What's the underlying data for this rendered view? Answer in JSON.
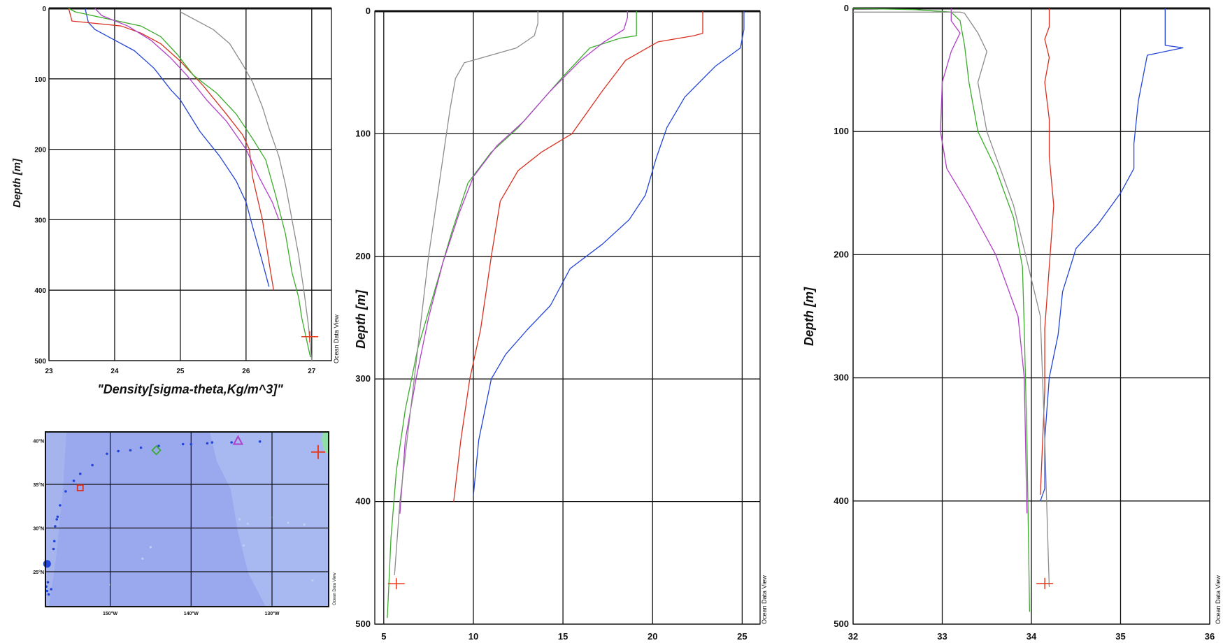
{
  "credit": "Ocean Data View",
  "colors": {
    "blue": "#2244d8",
    "red": "#d83020",
    "green": "#3cab2c",
    "purple": "#b040c8",
    "gray": "#8c8c8c",
    "marker": "#e83a1e",
    "map_ocean": "#9aa8ee",
    "map_light": "#b4d4f2",
    "map_land": "#8ee0a6"
  },
  "chart_data": [
    {
      "id": "density",
      "type": "line",
      "title": "",
      "xlabel": "\"Density[sigma-theta,Kg/m^3]\"",
      "ylabel": "Depth [m]",
      "xlim": [
        23,
        27.3
      ],
      "ylim": [
        500,
        0
      ],
      "xticks": [
        23,
        24,
        25,
        26,
        27
      ],
      "yticks": [
        0,
        100,
        200,
        300,
        400,
        500
      ],
      "grid": true,
      "marker": {
        "x": 26.97,
        "y": 466
      },
      "series": [
        {
          "color": "blue",
          "x": [
            23.55,
            23.6,
            23.7,
            24.0,
            24.3,
            24.6,
            24.85,
            25.0,
            25.3,
            25.6,
            25.85,
            26.0,
            26.1,
            26.25,
            26.35
          ],
          "y": [
            0,
            20,
            30,
            45,
            60,
            85,
            115,
            130,
            175,
            210,
            245,
            275,
            310,
            360,
            395
          ]
        },
        {
          "color": "red",
          "x": [
            23.3,
            23.35,
            24.1,
            24.4,
            24.7,
            25.0,
            25.35,
            25.7,
            25.95,
            26.05,
            26.1,
            26.25,
            26.35,
            26.42
          ],
          "y": [
            0,
            18,
            25,
            35,
            50,
            75,
            110,
            150,
            180,
            200,
            240,
            300,
            360,
            400
          ]
        },
        {
          "color": "green",
          "x": [
            23.3,
            23.4,
            24.4,
            24.7,
            24.95,
            25.2,
            25.55,
            25.85,
            26.1,
            26.3,
            26.45,
            26.6,
            26.7,
            26.8,
            26.85,
            26.98
          ],
          "y": [
            0,
            5,
            25,
            40,
            65,
            95,
            120,
            150,
            185,
            215,
            265,
            320,
            375,
            410,
            440,
            495
          ]
        },
        {
          "color": "purple",
          "x": [
            23.7,
            23.8,
            24.2,
            24.55,
            24.85,
            25.1,
            25.4,
            25.7,
            26.0,
            26.2,
            26.4,
            26.5
          ],
          "y": [
            0,
            10,
            25,
            45,
            70,
            95,
            130,
            160,
            200,
            240,
            275,
            300
          ]
        },
        {
          "color": "gray",
          "x": [
            25.0,
            25.2,
            25.5,
            25.75,
            25.95,
            26.1,
            26.25,
            26.35,
            26.5,
            26.6,
            26.7,
            26.8,
            26.88,
            26.95,
            27.0
          ],
          "y": [
            5,
            15,
            30,
            50,
            80,
            105,
            140,
            170,
            210,
            250,
            300,
            350,
            400,
            450,
            500
          ]
        }
      ]
    },
    {
      "id": "temperature",
      "type": "line",
      "title": "",
      "xlabel": "",
      "ylabel": "Depth [m]",
      "xlim": [
        4.5,
        26
      ],
      "ylim": [
        500,
        0
      ],
      "xticks": [
        5,
        10,
        15,
        20,
        25
      ],
      "yticks": [
        0,
        100,
        200,
        300,
        400,
        500
      ],
      "grid": true,
      "marker": {
        "x": 5.7,
        "y": 467
      },
      "series": [
        {
          "color": "blue",
          "x": [
            25.1,
            25.1,
            24.9,
            23.5,
            21.8,
            20.8,
            20.2,
            19.6,
            18.7,
            17.2,
            15.4,
            14.3,
            13.0,
            11.8,
            11.0,
            10.3,
            10.0
          ],
          "y": [
            0,
            15,
            30,
            45,
            70,
            95,
            120,
            150,
            170,
            190,
            210,
            240,
            260,
            280,
            300,
            350,
            395
          ]
        },
        {
          "color": "red",
          "x": [
            22.8,
            22.8,
            22.3,
            20.3,
            18.5,
            17.2,
            15.5,
            13.8,
            12.5,
            11.5,
            11.0,
            10.4,
            9.8,
            9.3,
            8.9
          ],
          "y": [
            0,
            18,
            20,
            25,
            40,
            65,
            100,
            115,
            130,
            155,
            200,
            260,
            300,
            350,
            400
          ]
        },
        {
          "color": "green",
          "x": [
            19.1,
            19.1,
            18.2,
            16.5,
            14.9,
            13.7,
            12.5,
            11.0,
            9.7,
            8.8,
            7.9,
            6.9,
            6.2,
            5.7,
            5.4,
            5.2
          ],
          "y": [
            0,
            20,
            22,
            30,
            55,
            75,
            95,
            115,
            140,
            180,
            225,
            275,
            325,
            375,
            430,
            495
          ]
        },
        {
          "color": "purple",
          "x": [
            18.6,
            18.6,
            18.4,
            17.3,
            16.0,
            14.3,
            12.8,
            11.3,
            10.0,
            9.2,
            8.3,
            7.5,
            6.8,
            6.2,
            5.9
          ],
          "y": [
            0,
            5,
            15,
            25,
            40,
            65,
            90,
            110,
            135,
            165,
            205,
            250,
            300,
            350,
            410
          ]
        },
        {
          "color": "gray",
          "x": [
            13.6,
            13.6,
            13.4,
            12.4,
            9.5,
            9.0,
            8.7,
            8.4,
            8.0,
            7.5,
            7.1,
            6.7,
            6.3,
            5.9,
            5.6
          ],
          "y": [
            0,
            10,
            20,
            30,
            42,
            55,
            80,
            110,
            150,
            200,
            250,
            300,
            350,
            400,
            460
          ]
        }
      ]
    },
    {
      "id": "salinity",
      "type": "line",
      "title": "",
      "xlabel": "",
      "ylabel": "Depth [m]",
      "xlim": [
        32,
        36
      ],
      "ylim": [
        500,
        0
      ],
      "xticks": [
        32,
        33,
        34,
        35,
        36
      ],
      "yticks": [
        0,
        100,
        200,
        300,
        400,
        500
      ],
      "grid": true,
      "marker": {
        "x": 34.15,
        "y": 467
      },
      "series": [
        {
          "color": "blue",
          "x": [
            35.5,
            35.5,
            35.7,
            35.3,
            35.2,
            35.15,
            35.15,
            35.0,
            34.75,
            34.5,
            34.35,
            34.3,
            34.2,
            34.15,
            34.15,
            34.1
          ],
          "y": [
            0,
            30,
            32,
            38,
            75,
            110,
            130,
            150,
            175,
            195,
            230,
            265,
            300,
            350,
            390,
            400
          ]
        },
        {
          "color": "red",
          "x": [
            34.2,
            34.2,
            34.15,
            34.2,
            34.15,
            34.2,
            34.2,
            34.25,
            34.2,
            34.15,
            34.15,
            34.1
          ],
          "y": [
            0,
            15,
            25,
            40,
            60,
            90,
            120,
            160,
            210,
            260,
            310,
            395
          ]
        },
        {
          "color": "green",
          "x": [
            32.0,
            32.7,
            33.1,
            33.2,
            33.25,
            33.3,
            33.4,
            33.6,
            33.8,
            33.9,
            33.92,
            33.95,
            33.98
          ],
          "y": [
            0,
            1,
            3,
            10,
            30,
            60,
            100,
            130,
            170,
            210,
            260,
            350,
            490
          ]
        },
        {
          "color": "purple",
          "x": [
            33.1,
            33.1,
            33.2,
            33.1,
            33.0,
            32.98,
            33.05,
            33.3,
            33.6,
            33.85,
            33.92,
            33.95
          ],
          "y": [
            0,
            10,
            20,
            35,
            60,
            100,
            130,
            160,
            200,
            250,
            300,
            410
          ]
        },
        {
          "color": "gray",
          "x": [
            32.0,
            33.2,
            33.25,
            33.4,
            33.5,
            33.4,
            33.5,
            33.8,
            34.1,
            34.15,
            34.2
          ],
          "y": [
            3,
            3,
            4,
            20,
            35,
            60,
            100,
            160,
            250,
            350,
            470
          ]
        }
      ]
    }
  ],
  "map": {
    "lat_labels": [
      "40°N",
      "35°N",
      "30°N",
      "25°N"
    ],
    "lon_labels": [
      "150°W",
      "140°W",
      "130°W"
    ],
    "stations": [
      [
        -157.7,
        23.8
      ],
      [
        -157.9,
        23.3
      ],
      [
        -157.8,
        22.8
      ],
      [
        -157.6,
        22.4
      ],
      [
        -157.3,
        23.0
      ],
      [
        -157.0,
        27.6
      ],
      [
        -156.9,
        28.5
      ],
      [
        -156.8,
        30.2
      ],
      [
        -156.6,
        31.0
      ],
      [
        -156.5,
        31.3
      ],
      [
        -156.2,
        32.6
      ],
      [
        -155.5,
        34.2
      ],
      [
        -154.5,
        35.4
      ],
      [
        -153.7,
        36.2
      ],
      [
        -152.2,
        37.2
      ],
      [
        -150.4,
        38.5
      ],
      [
        -149.0,
        38.8
      ],
      [
        -147.5,
        38.9
      ],
      [
        -146.2,
        39.2
      ],
      [
        -144.0,
        39.4
      ],
      [
        -141.0,
        39.6
      ],
      [
        -140.0,
        39.6
      ],
      [
        -138.0,
        39.7
      ],
      [
        -137.4,
        39.8
      ],
      [
        -135.0,
        39.8
      ],
      [
        -131.5,
        39.9
      ]
    ],
    "highlights": [
      {
        "lon": -157.8,
        "lat": 25.9,
        "color": "blue",
        "shape": "dot"
      },
      {
        "lon": -153.7,
        "lat": 34.6,
        "color": "red",
        "shape": "square"
      },
      {
        "lon": -144.3,
        "lat": 38.9,
        "color": "green",
        "shape": "diamond"
      },
      {
        "lon": -134.2,
        "lat": 40.0,
        "color": "purple",
        "shape": "triangle"
      },
      {
        "lon": -124.3,
        "lat": 38.7,
        "color": "marker",
        "shape": "cross"
      }
    ]
  }
}
